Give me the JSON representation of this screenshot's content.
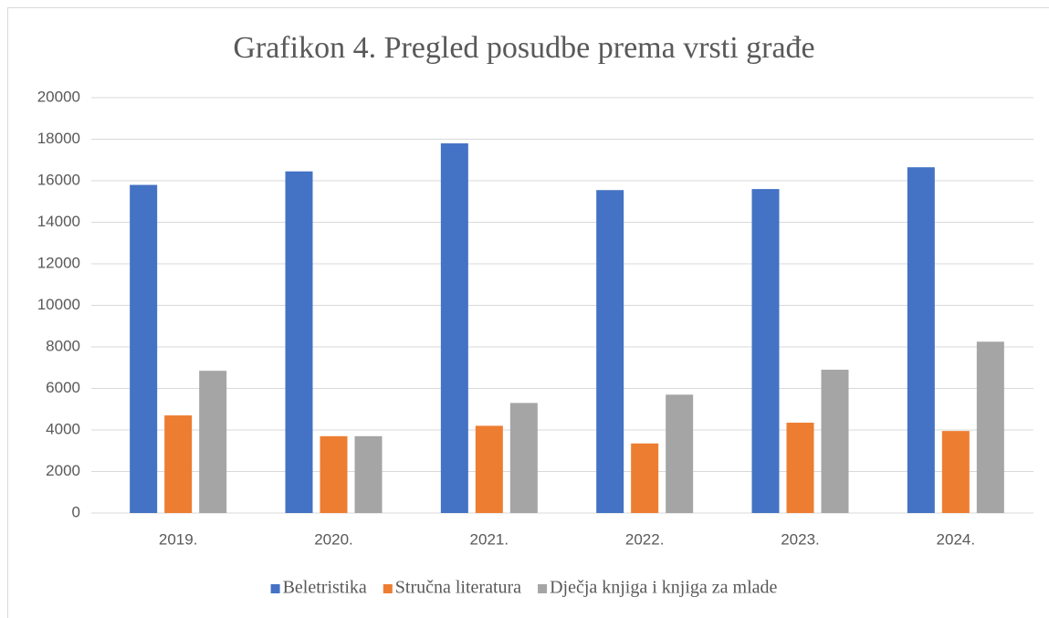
{
  "chart_data": {
    "type": "bar",
    "title": "Grafikon 4. Pregled posudbe prema vrsti građe",
    "categories": [
      "2019.",
      "2020.",
      "2021.",
      "2022.",
      "2023.",
      "2024."
    ],
    "series": [
      {
        "name": "Beletristika",
        "color": "#4472c4",
        "values": [
          15800,
          16450,
          17800,
          15550,
          15600,
          16650
        ]
      },
      {
        "name": "Stručna literatura",
        "color": "#ed7d31",
        "values": [
          4700,
          3700,
          4200,
          3350,
          4350,
          3950
        ]
      },
      {
        "name": "Dječja knjiga i knjiga za mlade",
        "color": "#a5a5a5",
        "values": [
          6850,
          3700,
          5300,
          5700,
          6900,
          8250
        ]
      }
    ],
    "ylim": [
      0,
      20000
    ],
    "yticks": [
      0,
      2000,
      4000,
      6000,
      8000,
      10000,
      12000,
      14000,
      16000,
      18000,
      20000
    ],
    "grid": true,
    "legend": "bottom"
  }
}
